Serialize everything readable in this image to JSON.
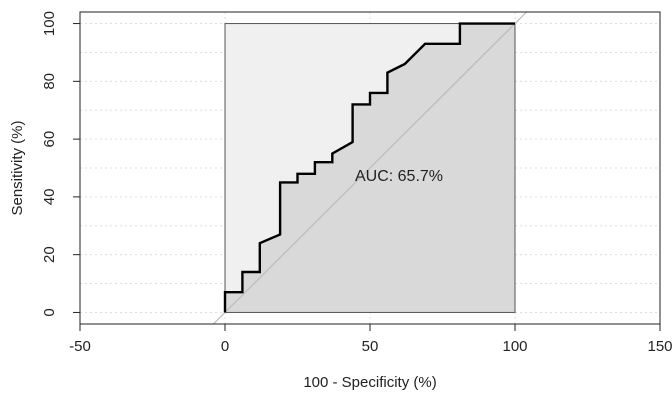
{
  "chart_data": {
    "type": "line",
    "title": "",
    "xlabel": "100 - Specificity (%)",
    "ylabel": "Sensitivity (%)",
    "xlim": [
      -50,
      150
    ],
    "ylim": [
      0,
      100
    ],
    "x_ticks": [
      -50,
      0,
      50,
      100,
      150
    ],
    "y_ticks": [
      0,
      20,
      40,
      60,
      80,
      100
    ],
    "grid": true,
    "legend": "none",
    "annotations": [
      {
        "text": "AUC: 65.7%",
        "x": 60,
        "y": 47
      }
    ],
    "reference_line": {
      "from": [
        0,
        0
      ],
      "to": [
        100,
        100
      ],
      "color": "#bbbbbb"
    },
    "series": [
      {
        "color": "#000000",
        "x": [
          0,
          0,
          6,
          6,
          12,
          12,
          19,
          19,
          25,
          25,
          31,
          31,
          37,
          37,
          44,
          44,
          50,
          50,
          56,
          56,
          62,
          62,
          69,
          69,
          81,
          81,
          100
        ],
        "y": [
          0,
          7,
          7,
          14,
          14,
          24,
          27,
          45,
          45,
          48,
          48,
          52,
          52,
          55,
          59,
          72,
          72,
          76,
          76,
          83,
          86,
          86,
          93,
          93,
          93,
          100,
          100
        ]
      }
    ],
    "colors": {
      "box_fill": "#f0f0f0",
      "under_curve_fill": "#d9d9d9",
      "curve": "#000000",
      "grid": "#dddddd"
    }
  }
}
